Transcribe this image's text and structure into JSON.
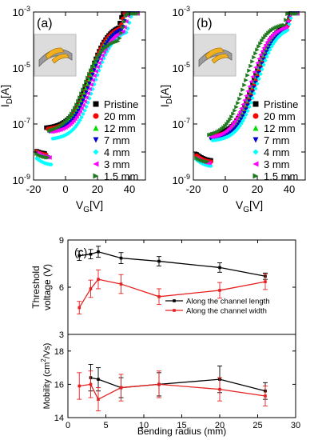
{
  "colors": {
    "pristine": "#000000",
    "r20": "#ff0000",
    "r12": "#00dd00",
    "r7": "#0000cc",
    "r4": "#00ffff",
    "r3": "#ff00ff",
    "r15": "#1f7a1f",
    "threshold_length": "#000000",
    "threshold_width": "#e62020",
    "inset_substrate": "#9a9a9a",
    "inset_electrode": "#f0b020"
  },
  "chart_data": [
    {
      "type": "scatter",
      "panel_label": "(a)",
      "xlabel_main": "V",
      "xlabel_sub": "G",
      "xlabel_unit": "[V]",
      "ylabel_main": "I",
      "ylabel_sub": "D",
      "ylabel_unit": "[A]",
      "xlim": [
        -20,
        50
      ],
      "ylim_exponent": [
        -9,
        -3
      ],
      "log_y": true,
      "x_ticks": [
        "-20",
        "0",
        "20",
        "40"
      ],
      "x_tick_values": [
        -20,
        0,
        20,
        40
      ],
      "y_ticks": [
        {
          "base": "10",
          "exp": "-3",
          "value": -3
        },
        {
          "base": "10",
          "exp": "-5",
          "value": -5
        },
        {
          "base": "10",
          "exp": "-7",
          "value": -7
        },
        {
          "base": "10",
          "exp": "-9",
          "value": -9
        }
      ],
      "inset": "device on bent substrate",
      "series": [
        {
          "name": "Pristine",
          "color_key": "pristine",
          "marker": "square",
          "min_log": -8.05,
          "vmin": -12,
          "plateau": -3.4,
          "vt": 15,
          "k": 0.17
        },
        {
          "name": "20 mm",
          "color_key": "r20",
          "marker": "circle",
          "min_log": -8.1,
          "vmin": -11,
          "plateau": -3.45,
          "vt": 15,
          "k": 0.17
        },
        {
          "name": "12 mm",
          "color_key": "r12",
          "marker": "triangle-up",
          "min_log": -8.15,
          "vmin": -10,
          "plateau": -3.5,
          "vt": 15,
          "k": 0.17
        },
        {
          "name": "7 mm",
          "color_key": "r7",
          "marker": "triangle-down",
          "min_log": -8.2,
          "vmin": -10,
          "plateau": -3.5,
          "vt": 16,
          "k": 0.17
        },
        {
          "name": "4 mm",
          "color_key": "r4",
          "marker": "diamond",
          "min_log": -8.45,
          "vmin": -8,
          "plateau": -3.6,
          "vt": 18,
          "k": 0.17
        },
        {
          "name": "3 mm",
          "color_key": "r3",
          "marker": "triangle-left",
          "min_log": -8.2,
          "vmin": -9,
          "plateau": -3.55,
          "vt": 17,
          "k": 0.17
        },
        {
          "name": "1.5 mm",
          "color_key": "r15",
          "marker": "triangle-right",
          "min_log": -8.2,
          "vmin": -10,
          "plateau": -3.95,
          "vt": 12,
          "k": 0.17
        }
      ]
    },
    {
      "type": "scatter",
      "panel_label": "(b)",
      "xlabel_main": "V",
      "xlabel_sub": "G",
      "xlabel_unit": "[V]",
      "ylabel_main": "I",
      "ylabel_sub": "D",
      "ylabel_unit": "[A]",
      "xlim": [
        -20,
        50
      ],
      "ylim_exponent": [
        -9,
        -3
      ],
      "log_y": true,
      "x_ticks": [
        "-20",
        "0",
        "20",
        "40"
      ],
      "x_tick_values": [
        -20,
        0,
        20,
        40
      ],
      "y_ticks": [
        {
          "base": "10",
          "exp": "-3",
          "value": -3
        },
        {
          "base": "10",
          "exp": "-5",
          "value": -5
        },
        {
          "base": "10",
          "exp": "-7",
          "value": -7
        },
        {
          "base": "10",
          "exp": "-9",
          "value": -9
        }
      ],
      "inset": "device on bent substrate",
      "series": [
        {
          "name": "Pristine",
          "color_key": "pristine",
          "marker": "square",
          "min_log": -8.3,
          "vmin": -8,
          "plateau": -3.4,
          "vt": 18,
          "k": 0.17
        },
        {
          "name": "20 mm",
          "color_key": "r20",
          "marker": "circle",
          "min_log": -8.35,
          "vmin": -8,
          "plateau": -3.45,
          "vt": 19,
          "k": 0.17
        },
        {
          "name": "12 mm",
          "color_key": "r12",
          "marker": "triangle-up",
          "min_log": -8.4,
          "vmin": -9,
          "plateau": -3.45,
          "vt": 18,
          "k": 0.17
        },
        {
          "name": "7 mm",
          "color_key": "r7",
          "marker": "triangle-down",
          "min_log": -8.45,
          "vmin": -9,
          "plateau": -3.5,
          "vt": 19,
          "k": 0.17
        },
        {
          "name": "4 mm",
          "color_key": "r4",
          "marker": "diamond",
          "min_log": -8.5,
          "vmin": -8,
          "plateau": -3.5,
          "vt": 20,
          "k": 0.17
        },
        {
          "name": "3 mm",
          "color_key": "r3",
          "marker": "triangle-left",
          "min_log": -8.4,
          "vmin": -9,
          "plateau": -3.45,
          "vt": 16,
          "k": 0.17
        },
        {
          "name": "1.5 mm",
          "color_key": "r15",
          "marker": "triangle-right",
          "min_log": -8.35,
          "vmin": -10,
          "plateau": -3.4,
          "vt": 13,
          "k": 0.17
        }
      ]
    },
    {
      "type": "line",
      "panel_label": "(c)",
      "xlabel": "Bending radius (mm)",
      "xlim": [
        0,
        30
      ],
      "x_ticks": [
        "0",
        "5",
        "10",
        "15",
        "20",
        "25",
        "30"
      ],
      "x_tick_values": [
        0,
        5,
        10,
        15,
        20,
        25,
        30
      ],
      "top": {
        "ylabel_line1": "Threshold",
        "ylabel_line2": "voltage (V)",
        "ylim": [
          3,
          9
        ],
        "y_ticks": [
          "3",
          "6",
          "9"
        ],
        "y_tick_values": [
          3,
          6,
          9
        ],
        "legend_position": "lower-right",
        "series": [
          {
            "name": "Along the channel length",
            "color_key": "threshold_length",
            "x": [
              1.5,
              3,
              4,
              7,
              12,
              20,
              26
            ],
            "y": [
              8.0,
              8.1,
              8.25,
              7.85,
              7.65,
              7.25,
              6.7
            ],
            "err": [
              0.3,
              0.3,
              0.35,
              0.35,
              0.3,
              0.3,
              0.2
            ]
          },
          {
            "name": "Along the channel width",
            "color_key": "threshold_width",
            "x": [
              1.5,
              3,
              4,
              7,
              12,
              20,
              26
            ],
            "y": [
              4.7,
              5.9,
              6.5,
              6.2,
              5.4,
              5.8,
              6.35
            ],
            "err": [
              0.4,
              0.55,
              0.6,
              0.6,
              0.5,
              0.5,
              0.5
            ]
          }
        ]
      },
      "bottom": {
        "ylabel_main": "Mobility (cm",
        "ylabel_sup": "2",
        "ylabel_tail": "/Vs)",
        "ylim": [
          14,
          19
        ],
        "y_ticks": [
          "14",
          "16",
          "18"
        ],
        "y_tick_values": [
          14,
          16,
          18
        ],
        "series": [
          {
            "name": "Along the channel length",
            "color_key": "threshold_length",
            "x": [
              3,
              4,
              7,
              12,
              20,
              26
            ],
            "y": [
              16.4,
              16.3,
              15.8,
              16.0,
              16.3,
              15.6
            ],
            "err": [
              0.8,
              0.7,
              0.6,
              0.7,
              0.8,
              0.5
            ]
          },
          {
            "name": "Along the channel width",
            "color_key": "threshold_width",
            "x": [
              1.5,
              3,
              4,
              7,
              12,
              20,
              26
            ],
            "y": [
              15.9,
              16.0,
              15.1,
              15.8,
              16.0,
              15.7,
              15.3
            ],
            "err": [
              0.8,
              0.8,
              0.7,
              0.8,
              0.8,
              0.7,
              0.6
            ]
          }
        ]
      }
    }
  ]
}
